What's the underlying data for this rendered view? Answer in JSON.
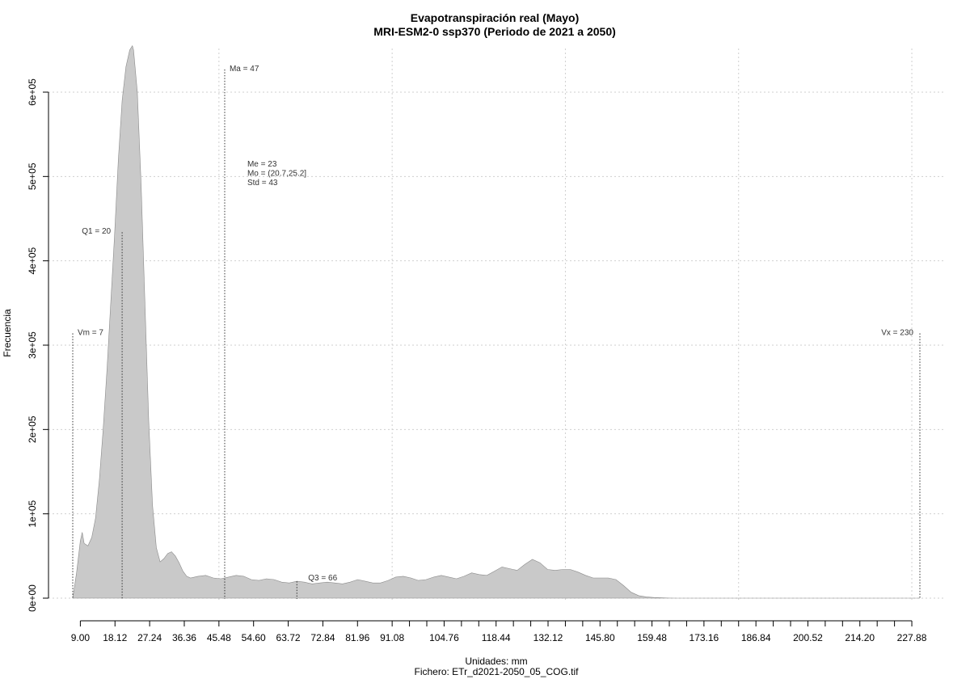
{
  "chart_data": {
    "type": "area",
    "title": "Evapotranspiración real (Mayo)",
    "subtitle": "MRI-ESM2-0 ssp370 (Periodo de 2021 a 2050)",
    "xlabel": "Unidades: mm",
    "ylabel": "Frecuencia",
    "caption": "Fichero: ETr_d2021-2050_05_COG.tif",
    "xlim": [
      7,
      230
    ],
    "ylim": [
      0,
      650000
    ],
    "grid": true,
    "x_tick_labels": [
      "9.00",
      "18.12",
      "27.24",
      "36.36",
      "45.48",
      "54.60",
      "63.72",
      "72.84",
      "81.96",
      "91.08",
      "104.76",
      "118.44",
      "132.12",
      "145.80",
      "159.48",
      "173.16",
      "186.84",
      "200.52",
      "214.20",
      "227.88"
    ],
    "x_minor_ticks": [
      95.64,
      100.2,
      109.32,
      113.88,
      123.0,
      127.56,
      136.68,
      141.24,
      150.36,
      154.92,
      164.04,
      168.6,
      177.72,
      182.28,
      191.4,
      195.96,
      205.08,
      209.64,
      218.76,
      223.32
    ],
    "x_grid": [
      45.48,
      91.08,
      136.68,
      182.28,
      227.88
    ],
    "y_ticks": [
      0,
      100000,
      200000,
      300000,
      400000,
      500000,
      600000
    ],
    "y_tick_labels": [
      "0e+00",
      "1e+05",
      "2e+05",
      "3e+05",
      "4e+05",
      "5e+05",
      "6e+05"
    ],
    "density": {
      "x": [
        7,
        8,
        9,
        9.5,
        10,
        11,
        12,
        13,
        14,
        15,
        16,
        17,
        18,
        19,
        20,
        21,
        22,
        22.7,
        23,
        24,
        25,
        26,
        27,
        28,
        29,
        30,
        31,
        32,
        33,
        34,
        35,
        36,
        37,
        38,
        40,
        42,
        44,
        46,
        48,
        50,
        52,
        54,
        56,
        58,
        60,
        62,
        64,
        66,
        68,
        70,
        72,
        74,
        76,
        78,
        80,
        82,
        84,
        86,
        88,
        90,
        92,
        94,
        96,
        98,
        100,
        102,
        104,
        106,
        108,
        110,
        112,
        114,
        116,
        118,
        120,
        122,
        124,
        126,
        128,
        130,
        132,
        134,
        136,
        138,
        140,
        142,
        144,
        146,
        148,
        150,
        152,
        154,
        156,
        158,
        160,
        162,
        164,
        166,
        170,
        180,
        200,
        220,
        230
      ],
      "y": [
        0,
        30000,
        68000,
        78000,
        65000,
        62000,
        72000,
        95000,
        140000,
        200000,
        270000,
        350000,
        430000,
        520000,
        590000,
        630000,
        650000,
        655000,
        650000,
        600000,
        490000,
        350000,
        210000,
        110000,
        60000,
        43000,
        47000,
        53000,
        55000,
        50000,
        42000,
        32000,
        26000,
        24000,
        26000,
        27000,
        24000,
        23000,
        25000,
        27000,
        26000,
        22000,
        21000,
        23000,
        22000,
        19000,
        18000,
        20000,
        19000,
        17000,
        18000,
        19000,
        18000,
        17000,
        19000,
        22000,
        20000,
        18000,
        18000,
        21000,
        25000,
        26000,
        24000,
        21000,
        22000,
        25000,
        27000,
        25000,
        23000,
        26000,
        30000,
        28000,
        27000,
        32000,
        37000,
        35000,
        33000,
        40000,
        46000,
        42000,
        34000,
        33000,
        34000,
        34000,
        31000,
        27000,
        24000,
        24000,
        24000,
        22000,
        15000,
        7000,
        3000,
        1500,
        800,
        400,
        100,
        0,
        0,
        0,
        0,
        0,
        0
      ]
    },
    "reference_lines": [
      {
        "label": "Vm = 7",
        "x": 7,
        "y": 314000
      },
      {
        "label": "Q1 = 20",
        "x": 20,
        "y": 434000
      },
      {
        "label": "Ma = 47",
        "x": 47,
        "y": 627000
      },
      {
        "label": "Q3 = 66",
        "x": 66,
        "y": 20000
      },
      {
        "label": "Vx = 230",
        "x": 230,
        "y": 314000
      }
    ],
    "stats_lines": [
      "Me = 23",
      "Mo = (20.7,25.2]",
      "Std = 43"
    ]
  }
}
